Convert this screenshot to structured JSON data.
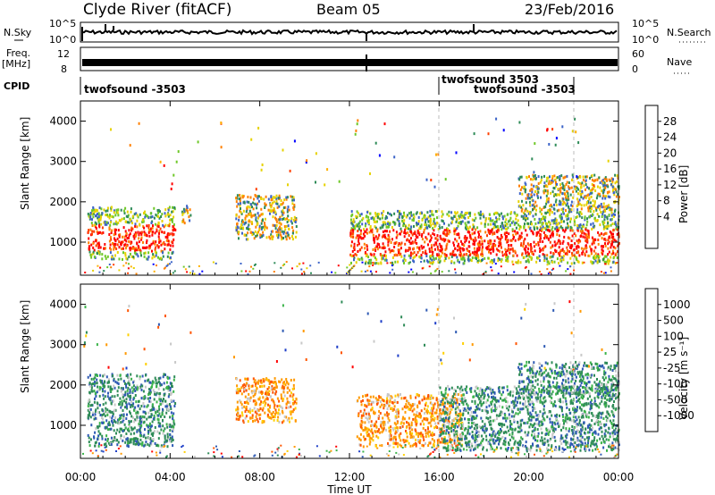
{
  "header": {
    "station": "Clyde River (fitACF)",
    "beam": "Beam 05",
    "date": "23/Feb/2016"
  },
  "strip": {
    "nsky_label": "N.Sky",
    "nsky_ticks": [
      "10^5",
      "10^0"
    ],
    "nsearch_label": "N.Search",
    "nsearch_ticks": [
      "10^5",
      "10^0"
    ],
    "freq_label": "Freq.",
    "freq_unit": "[MHz]",
    "freq_ticks": [
      "12",
      "8"
    ],
    "nave_label": "Nave",
    "nave_ticks": [
      "60",
      "0"
    ],
    "cpid_label": "CPID",
    "cpid_segments": [
      "twofsound -3503",
      "twofsound 3503",
      "twofsound -3503"
    ]
  },
  "chart_data": [
    {
      "type": "heatmap",
      "name": "power-panel",
      "ylabel": "Slant Range [km]",
      "yticks": [
        "4000",
        "3000",
        "2000",
        "1000"
      ],
      "ylim": [
        180,
        4500
      ],
      "xlim_hours": [
        0,
        24
      ],
      "colorbar_label": "Power [dB]",
      "colorbar_ticks": [
        "28",
        "24",
        "20",
        "16",
        "12",
        "8",
        "4"
      ],
      "colorbar_colors": [
        "#ff0000",
        "#ff4000",
        "#ff8000",
        "#ffb000",
        "#e6d200",
        "#6ec828",
        "#2e8b57",
        "#3c64c8",
        "#0000ff"
      ],
      "scatter_regions": [
        {
          "t0": 0.3,
          "t1": 4.2,
          "r0": 600,
          "r1": 1900,
          "level": "high"
        },
        {
          "t0": 4.5,
          "t1": 4.9,
          "r0": 1500,
          "r1": 2000,
          "level": "mid"
        },
        {
          "t0": 6.9,
          "t1": 9.6,
          "r0": 1100,
          "r1": 2200,
          "level": "mid"
        },
        {
          "t0": 12.0,
          "t1": 24.0,
          "r0": 500,
          "r1": 1800,
          "level": "high"
        },
        {
          "t0": 19.5,
          "t1": 24.0,
          "r0": 1800,
          "r1": 2700,
          "level": "mid"
        }
      ]
    },
    {
      "type": "heatmap",
      "name": "velocity-panel",
      "ylabel": "Slant Range [km]",
      "yticks": [
        "4000",
        "3000",
        "2000",
        "1000"
      ],
      "ylim": [
        180,
        4500
      ],
      "xlim_hours": [
        0,
        24
      ],
      "xticks": [
        "00:00",
        "04:00",
        "08:00",
        "12:00",
        "16:00",
        "20:00",
        "00:00"
      ],
      "xlabel": "Time UT",
      "colorbar_label": "Velocity [m s⁻¹]",
      "colorbar_ticks": [
        "1000",
        "500",
        "100",
        "25",
        "-25",
        "-100",
        "-500",
        "-1000"
      ],
      "colorbar_colors": [
        "#1f3fc8",
        "#2e5ab4",
        "#2e8b57",
        "#3cb44b",
        "#c8c8c8",
        "#ffd000",
        "#ff9900",
        "#ff5500",
        "#ff0000"
      ],
      "scatter_regions": [
        {
          "t0": 0.3,
          "t1": 4.2,
          "r0": 500,
          "r1": 2300,
          "level": "pos"
        },
        {
          "t0": 6.9,
          "t1": 9.6,
          "r0": 1100,
          "r1": 2200,
          "level": "neg"
        },
        {
          "t0": 12.3,
          "t1": 17.0,
          "r0": 500,
          "r1": 1800,
          "level": "neg"
        },
        {
          "t0": 16.0,
          "t1": 24.0,
          "r0": 400,
          "r1": 2000,
          "level": "pos"
        },
        {
          "t0": 19.5,
          "t1": 24.0,
          "r0": 1800,
          "r1": 2600,
          "level": "pos"
        }
      ]
    }
  ]
}
